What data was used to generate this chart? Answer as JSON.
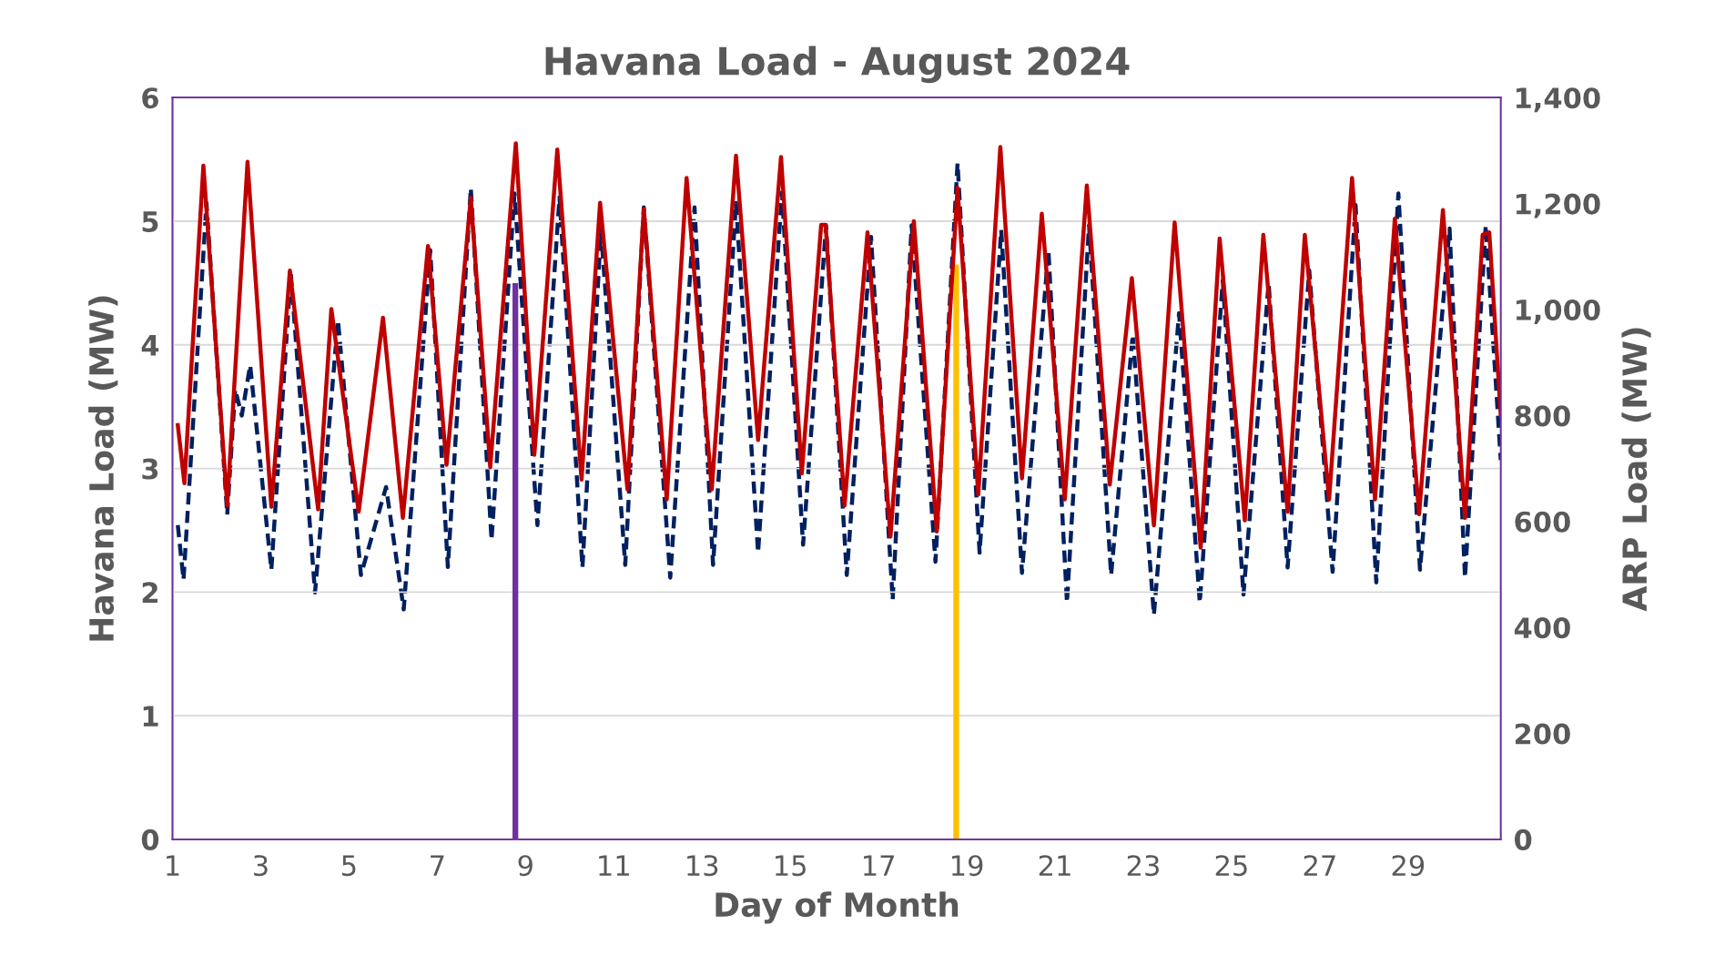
{
  "chart_data": {
    "type": "line",
    "title": "Havana Load - August 2024",
    "xlabel": "Day of Month",
    "ylabel": "Havana Load (MW)",
    "y2label": "ARP Load (MW)",
    "xlim": [
      1,
      31.1
    ],
    "xticks": [
      1,
      3,
      5,
      7,
      9,
      11,
      13,
      15,
      17,
      19,
      21,
      23,
      25,
      27,
      29
    ],
    "ylim": [
      0,
      6
    ],
    "yticks": [
      0,
      1,
      2,
      3,
      4,
      5,
      6
    ],
    "y2lim": [
      0,
      1400
    ],
    "y2ticks": [
      0,
      200,
      400,
      600,
      800,
      {
        "value": 1000,
        "label": "1,000"
      },
      {
        "value": 1200,
        "label": "1,200"
      },
      {
        "value": 1400,
        "label": "1,400"
      }
    ],
    "grid": "y",
    "legend": false,
    "series": [
      {
        "type": "bar",
        "color": "#7030a0",
        "x": [
          8.77
        ],
        "values": [
          4.5
        ]
      },
      {
        "type": "bar",
        "color": "#ffc000",
        "x": [
          18.76
        ],
        "values": [
          4.65
        ]
      },
      {
        "axis": "y2",
        "color": "#002060",
        "line_style": "dashed",
        "x": [
          1.12,
          1.25,
          1.77,
          2.24,
          2.42,
          2.57,
          2.76,
          3.24,
          3.68,
          4.23,
          4.75,
          5.27,
          5.84,
          6.24,
          6.84,
          7.24,
          7.76,
          8.23,
          8.75,
          9.27,
          9.77,
          10.29,
          10.71,
          11.26,
          11.68,
          12.28,
          12.83,
          13.25,
          13.77,
          14.27,
          14.81,
          15.29,
          15.81,
          16.28,
          16.83,
          17.32,
          17.75,
          18.29,
          18.79,
          19.29,
          19.78,
          20.25,
          20.85,
          21.27,
          21.77,
          22.27,
          22.76,
          23.24,
          23.81,
          24.28,
          24.8,
          25.27,
          25.84,
          26.27,
          26.76,
          27.29,
          27.81,
          28.28,
          28.78,
          29.27,
          29.94,
          30.29,
          30.76,
          31.1
        ],
        "values": [
          593,
          490,
          1201,
          613,
          849,
          800,
          895,
          509,
          1069,
          466,
          980,
          499,
          665,
          434,
          1112,
          514,
          1229,
          565,
          1219,
          593,
          1212,
          513,
          1150,
          518,
          1193,
          494,
          1193,
          518,
          1201,
          541,
          1221,
          556,
          1159,
          499,
          1137,
          452,
          1159,
          524,
          1276,
          541,
          1150,
          503,
          1112,
          447,
          1159,
          499,
          952,
          424,
          993,
          447,
          1055,
          462,
          1050,
          513,
          1074,
          505,
          1197,
          485,
          1219,
          509,
          1153,
          494,
          1159,
          716
        ]
      },
      {
        "color": "#c00000",
        "line_style": "solid",
        "x": [
          1.12,
          1.27,
          1.7,
          2.24,
          2.7,
          3.24,
          3.66,
          4.3,
          4.6,
          5.22,
          5.77,
          6.22,
          6.79,
          7.21,
          7.76,
          8.2,
          8.78,
          9.2,
          9.72,
          10.27,
          10.69,
          11.31,
          11.68,
          12.2,
          12.65,
          13.22,
          13.77,
          14.27,
          14.79,
          15.26,
          15.7,
          15.8,
          16.23,
          16.75,
          17.27,
          17.8,
          18.32,
          18.79,
          19.26,
          19.76,
          20.25,
          20.7,
          21.22,
          21.72,
          22.24,
          22.74,
          23.24,
          23.71,
          24.3,
          24.73,
          25.3,
          25.72,
          26.27,
          26.66,
          27.21,
          27.73,
          28.25,
          28.7,
          29.25,
          29.79,
          30.29,
          30.69,
          30.84,
          31.1
        ],
        "values": [
          3.35,
          2.88,
          5.45,
          2.7,
          5.48,
          2.69,
          4.6,
          2.67,
          4.29,
          2.65,
          4.22,
          2.6,
          4.8,
          3.03,
          5.19,
          3.01,
          5.63,
          3.11,
          5.58,
          2.91,
          5.15,
          2.83,
          5.1,
          2.75,
          5.35,
          2.83,
          5.53,
          3.23,
          5.52,
          2.96,
          4.97,
          4.97,
          2.7,
          4.91,
          2.45,
          5.0,
          2.49,
          5.27,
          2.79,
          5.6,
          2.92,
          5.06,
          2.75,
          5.29,
          2.87,
          4.54,
          2.54,
          4.99,
          2.36,
          4.86,
          2.58,
          4.89,
          2.65,
          4.89,
          2.75,
          5.35,
          2.75,
          5.02,
          2.63,
          5.09,
          2.6,
          4.89,
          4.91,
          3.43
        ]
      }
    ]
  }
}
